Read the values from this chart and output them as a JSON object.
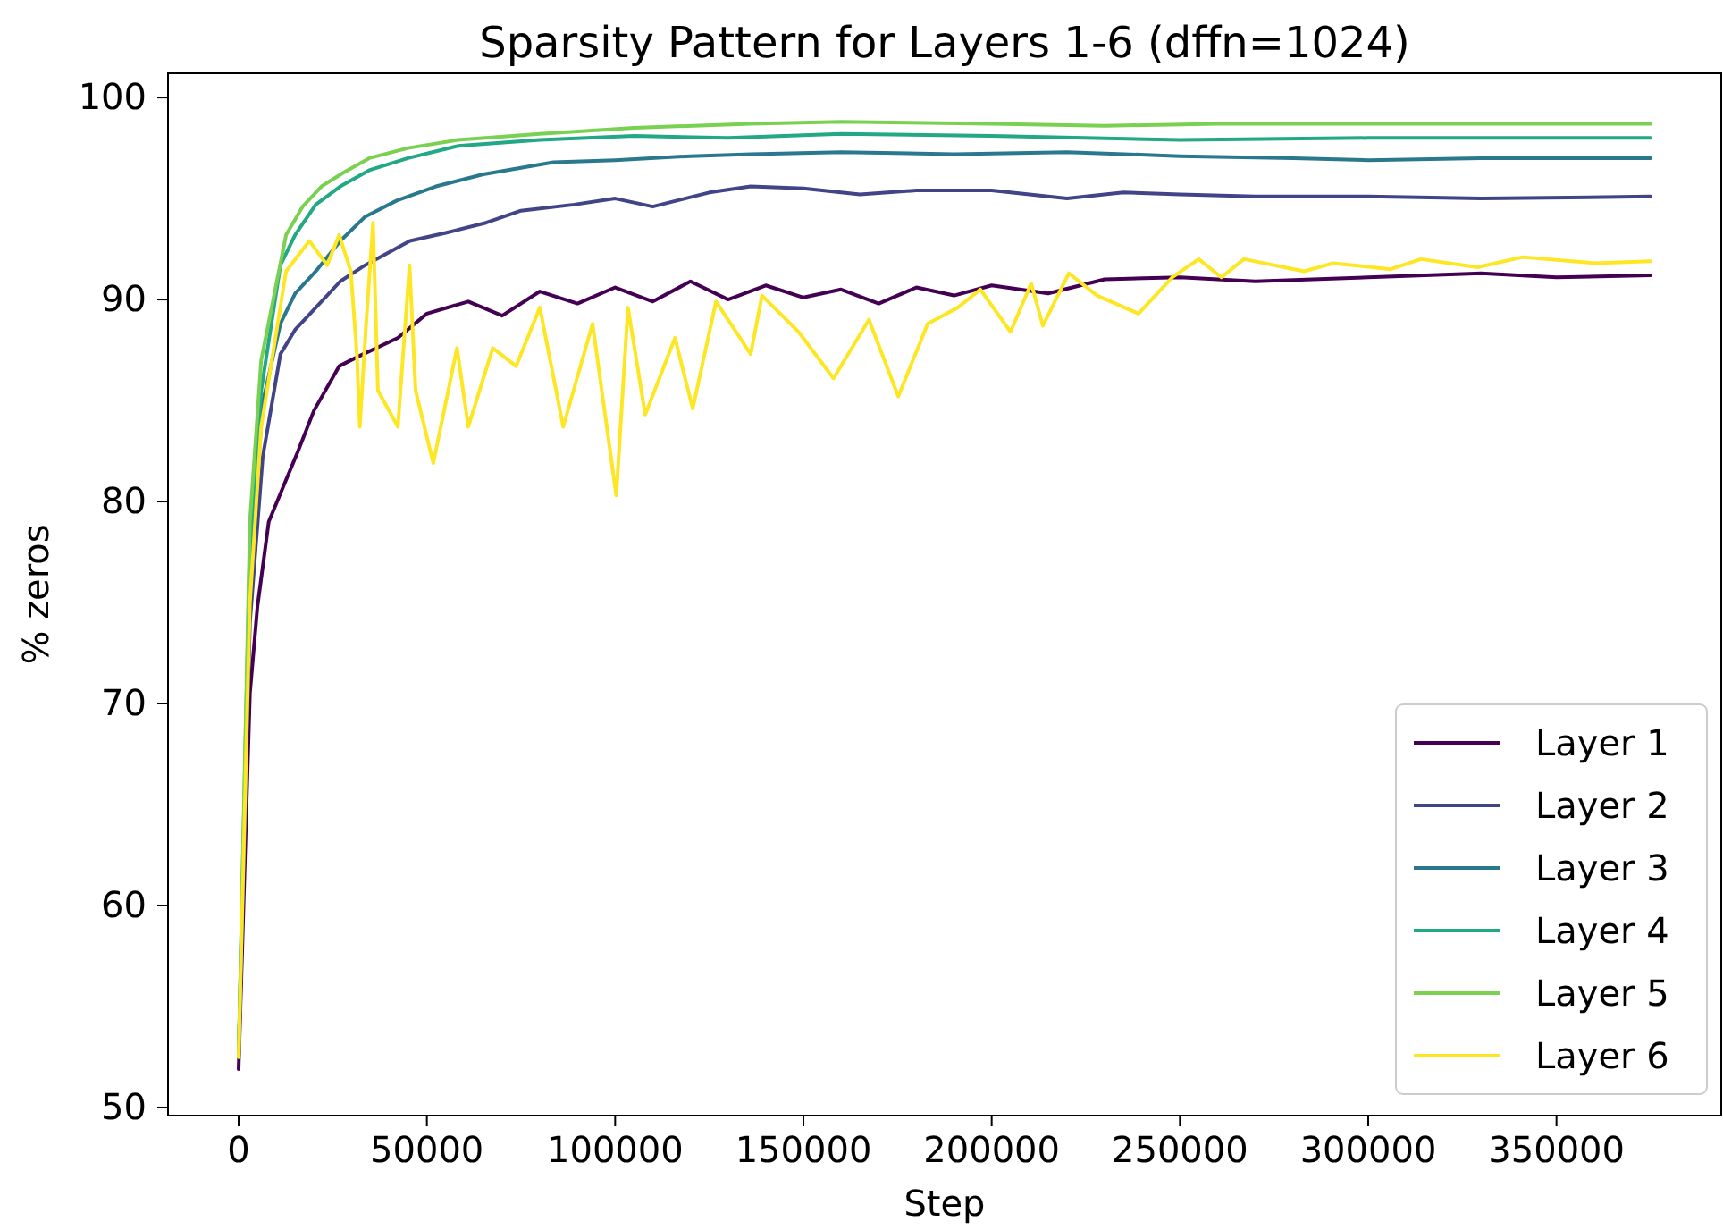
{
  "chart_data": {
    "type": "line",
    "title": "Sparsity Pattern for Layers 1-6 (dffn=1024)",
    "xlabel": "Step",
    "ylabel": "% zeros",
    "xlim": [
      -18750,
      393750
    ],
    "ylim": [
      49.6,
      101.2
    ],
    "xticks": [
      0,
      50000,
      100000,
      150000,
      200000,
      250000,
      300000,
      350000
    ],
    "yticks": [
      50,
      60,
      70,
      80,
      90,
      100
    ],
    "grid": false,
    "legend": "lower right",
    "line_style": "solid",
    "marker": "none",
    "series": [
      {
        "name": "Layer 1",
        "color": "#440154",
        "x": [
          0,
          3000,
          5000,
          8000,
          12000,
          15800,
          20000,
          26700,
          32000,
          42300,
          50000,
          61000,
          70000,
          80000,
          90000,
          100000,
          110000,
          120000,
          130000,
          140000,
          150000,
          160000,
          170000,
          180000,
          190000,
          200000,
          215000,
          230000,
          250000,
          270000,
          300000,
          330000,
          350000,
          375000
        ],
        "values": [
          51.9,
          70.5,
          74.8,
          79.0,
          80.8,
          82.5,
          84.5,
          86.7,
          87.2,
          88.1,
          89.3,
          89.9,
          89.2,
          90.4,
          89.8,
          90.6,
          89.9,
          90.9,
          90.0,
          90.7,
          90.1,
          90.5,
          89.8,
          90.6,
          90.2,
          90.7,
          90.3,
          91.0,
          91.1,
          90.9,
          91.1,
          91.3,
          91.1,
          91.2
        ]
      },
      {
        "name": "Layer 2",
        "color": "#414487",
        "x": [
          0,
          3000,
          6400,
          11100,
          15000,
          20500,
          27000,
          33600,
          45500,
          55000,
          65700,
          75000,
          89100,
          100000,
          110000,
          125000,
          136000,
          150000,
          165000,
          180000,
          200000,
          220000,
          235000,
          250000,
          270000,
          300000,
          330000,
          375000
        ],
        "values": [
          52.5,
          74.0,
          82.2,
          87.3,
          88.5,
          89.6,
          90.9,
          91.7,
          92.9,
          93.3,
          93.8,
          94.4,
          94.7,
          95.0,
          94.6,
          95.3,
          95.6,
          95.5,
          95.2,
          95.4,
          95.4,
          95.0,
          95.3,
          95.2,
          95.1,
          95.1,
          95.0,
          95.1
        ]
      },
      {
        "name": "Layer 3",
        "color": "#2a788e",
        "x": [
          0,
          3000,
          6400,
          11100,
          15000,
          20500,
          27000,
          33600,
          42000,
          52400,
          65000,
          83600,
          100000,
          120000,
          136000,
          160000,
          190000,
          220000,
          250000,
          280000,
          300000,
          330000,
          375000
        ],
        "values": [
          52.5,
          76.0,
          84.9,
          88.8,
          90.3,
          91.4,
          92.9,
          94.1,
          94.9,
          95.6,
          96.2,
          96.8,
          96.9,
          97.1,
          97.2,
          97.3,
          97.2,
          97.3,
          97.1,
          97.0,
          96.9,
          97.0,
          97.0
        ]
      },
      {
        "name": "Layer 4",
        "color": "#22a884",
        "x": [
          0,
          3000,
          6000,
          11100,
          15000,
          20500,
          27000,
          34700,
          45000,
          58200,
          80000,
          105000,
          130000,
          160000,
          200000,
          250000,
          300000,
          375000
        ],
        "values": [
          52.5,
          78.0,
          85.5,
          91.7,
          93.2,
          94.7,
          95.6,
          96.4,
          97.0,
          97.6,
          97.9,
          98.1,
          98.0,
          98.2,
          98.1,
          97.9,
          98.0,
          98.0
        ]
      },
      {
        "name": "Layer 5",
        "color": "#7ad151",
        "x": [
          0,
          3000,
          6000,
          12600,
          17000,
          22000,
          28000,
          34700,
          45000,
          58200,
          80000,
          105000,
          136000,
          160000,
          200000,
          230000,
          260000,
          300000,
          375000
        ],
        "values": [
          52.5,
          79.0,
          87.0,
          93.2,
          94.6,
          95.6,
          96.3,
          97.0,
          97.5,
          97.9,
          98.2,
          98.5,
          98.7,
          98.8,
          98.7,
          98.6,
          98.7,
          98.7,
          98.7
        ]
      },
      {
        "name": "Layer 6",
        "color": "#fde725",
        "x": [
          0,
          3000,
          6000,
          12600,
          18800,
          23500,
          26700,
          29800,
          31400,
          32200,
          33800,
          35700,
          37000,
          42300,
          45400,
          47000,
          51700,
          58000,
          61000,
          67500,
          73700,
          80000,
          86200,
          94000,
          100300,
          103400,
          108000,
          115900,
          120600,
          126800,
          136000,
          139000,
          148700,
          158000,
          167400,
          175200,
          183000,
          191000,
          197000,
          205000,
          210500,
          213600,
          220500,
          228000,
          239000,
          248000,
          255000,
          261000,
          267000,
          283000,
          290700,
          306000,
          314000,
          329000,
          341000,
          360000,
          375000
        ],
        "values": [
          52.5,
          75.0,
          83.7,
          91.4,
          92.9,
          91.7,
          93.2,
          91.4,
          87.3,
          83.7,
          88.6,
          93.8,
          85.5,
          83.7,
          91.7,
          85.5,
          81.9,
          87.6,
          83.7,
          87.6,
          86.7,
          89.6,
          83.7,
          88.8,
          80.3,
          89.6,
          84.3,
          88.1,
          84.6,
          89.9,
          87.3,
          90.2,
          88.4,
          86.1,
          89.0,
          85.2,
          88.8,
          89.6,
          90.5,
          88.4,
          90.8,
          88.7,
          91.3,
          90.2,
          89.3,
          91.1,
          92.0,
          91.1,
          92.0,
          91.4,
          91.8,
          91.5,
          92.0,
          91.6,
          92.1,
          91.8,
          91.9
        ]
      }
    ]
  }
}
